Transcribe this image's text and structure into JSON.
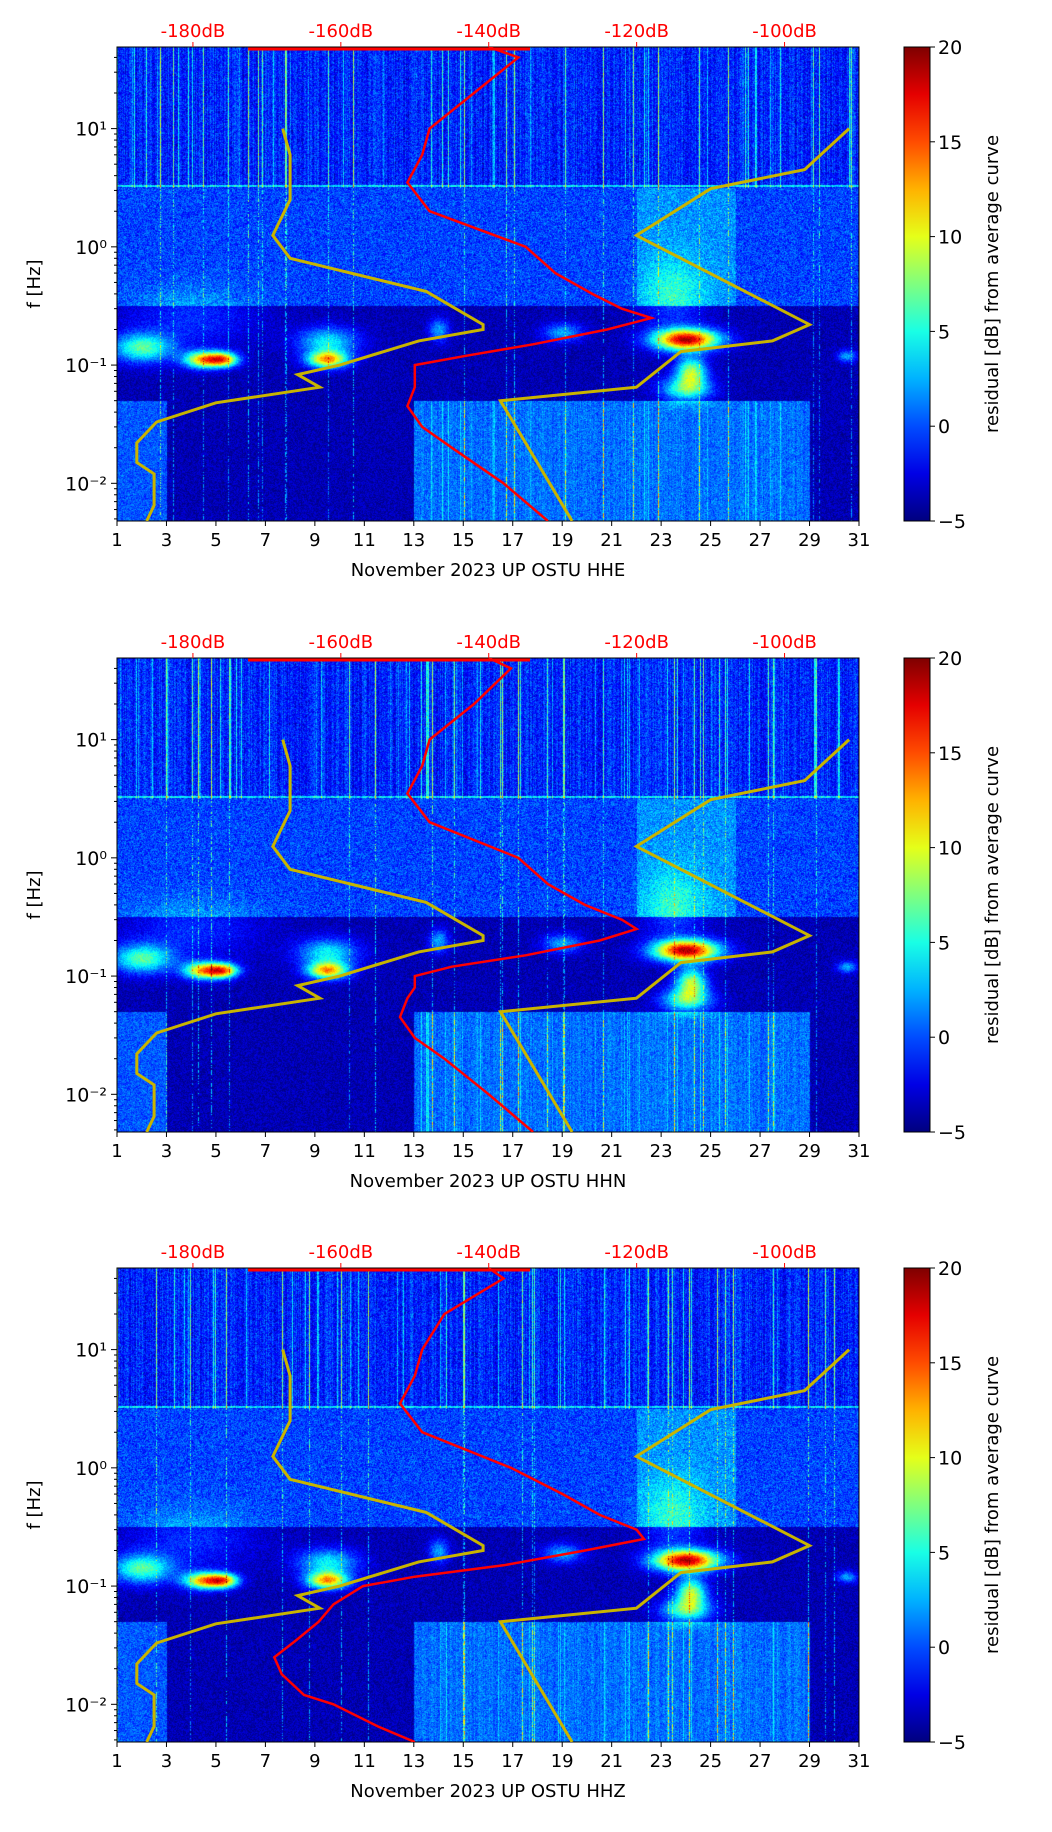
{
  "chart_data": [
    {
      "type": "heatmap",
      "title": "November 2023 UP OSTU  HHE",
      "xlabel": "November 2023 UP OSTU  HHE",
      "ylabel": "f [Hz]",
      "xlim": [
        1,
        31
      ],
      "ylim": [
        0.0048,
        49
      ],
      "yscale": "log",
      "xticks": [
        "1",
        "3",
        "5",
        "7",
        "9",
        "11",
        "13",
        "15",
        "17",
        "19",
        "21",
        "23",
        "25",
        "27",
        "29",
        "31"
      ],
      "yticks": [
        {
          "v": 10,
          "label": "10¹"
        },
        {
          "v": 1,
          "label": "10⁰"
        },
        {
          "v": 0.1,
          "label": "10⁻¹"
        },
        {
          "v": 0.01,
          "label": "10⁻²"
        }
      ],
      "top_axis": {
        "labels": [
          "-180dB",
          "-160dB",
          "-140dB",
          "-120dB",
          "-100dB"
        ],
        "values": [
          -180,
          -160,
          -140,
          -120,
          -100
        ],
        "color": "#ff0000"
      },
      "colorbar": {
        "label": "residual [dB] from average curve",
        "range": [
          -5,
          20
        ],
        "ticks": [
          "20",
          "15",
          "10",
          "5",
          "0",
          "−5"
        ]
      },
      "psd_curve_db": [
        [
          49,
          -140
        ],
        [
          40,
          -136
        ],
        [
          20,
          -142
        ],
        [
          10,
          -148
        ],
        [
          6,
          -149
        ],
        [
          3.5,
          -151
        ],
        [
          2,
          -148
        ],
        [
          1,
          -135
        ],
        [
          0.6,
          -131
        ],
        [
          0.4,
          -126
        ],
        [
          0.3,
          -122
        ],
        [
          0.25,
          -118
        ],
        [
          0.2,
          -124
        ],
        [
          0.15,
          -134
        ],
        [
          0.12,
          -143
        ],
        [
          0.1,
          -150
        ],
        [
          0.08,
          -150
        ],
        [
          0.065,
          -150
        ],
        [
          0.045,
          -151
        ],
        [
          0.03,
          -149
        ],
        [
          0.02,
          -145
        ],
        [
          0.01,
          -138
        ],
        [
          0.0048,
          -132
        ]
      ],
      "nlnm_days": [
        [
          10,
          7.7
        ],
        [
          6,
          8
        ],
        [
          2.5,
          8
        ],
        [
          1.25,
          7.3
        ],
        [
          0.8,
          8
        ],
        [
          0.42,
          13.5
        ],
        [
          0.22,
          15.8
        ],
        [
          0.2,
          15.8
        ],
        [
          0.16,
          13.2
        ],
        [
          0.1,
          10
        ],
        [
          0.083,
          8.3
        ],
        [
          0.065,
          9.2
        ],
        [
          0.048,
          5
        ],
        [
          0.033,
          2.6
        ],
        [
          0.022,
          1.8
        ],
        [
          0.015,
          1.8
        ],
        [
          0.012,
          2.5
        ],
        [
          0.0065,
          2.5
        ],
        [
          0.0048,
          2.2
        ]
      ],
      "nhnm_days": [
        [
          10,
          30.6
        ],
        [
          4.5,
          28.8
        ],
        [
          3.1,
          25
        ],
        [
          1.25,
          22
        ],
        [
          0.22,
          29
        ],
        [
          0.16,
          27.5
        ],
        [
          0.13,
          23.8
        ],
        [
          0.065,
          22
        ],
        [
          0.05,
          16.5
        ],
        [
          0.0048,
          19.4
        ]
      ]
    },
    {
      "type": "heatmap",
      "title": "November 2023 UP OSTU  HHN",
      "xlabel": "November 2023 UP OSTU  HHN",
      "ylabel": "f [Hz]",
      "xlim": [
        1,
        31
      ],
      "ylim": [
        0.0048,
        49
      ],
      "yscale": "log",
      "xticks": [
        "1",
        "3",
        "5",
        "7",
        "9",
        "11",
        "13",
        "15",
        "17",
        "19",
        "21",
        "23",
        "25",
        "27",
        "29",
        "31"
      ],
      "yticks": [
        {
          "v": 10,
          "label": "10¹"
        },
        {
          "v": 1,
          "label": "10⁰"
        },
        {
          "v": 0.1,
          "label": "10⁻¹"
        },
        {
          "v": 0.01,
          "label": "10⁻²"
        }
      ],
      "top_axis": {
        "labels": [
          "-180dB",
          "-160dB",
          "-140dB",
          "-120dB",
          "-100dB"
        ],
        "values": [
          -180,
          -160,
          -140,
          -120,
          -100
        ],
        "color": "#ff0000"
      },
      "colorbar": {
        "label": "residual [dB] from average curve",
        "range": [
          -5,
          20
        ],
        "ticks": [
          "20",
          "15",
          "10",
          "5",
          "0",
          "−5"
        ]
      },
      "psd_curve_db": [
        [
          49,
          -140
        ],
        [
          40,
          -137
        ],
        [
          20,
          -142
        ],
        [
          10,
          -148
        ],
        [
          6,
          -149
        ],
        [
          3.5,
          -151
        ],
        [
          2,
          -148
        ],
        [
          1,
          -136
        ],
        [
          0.6,
          -132
        ],
        [
          0.4,
          -127
        ],
        [
          0.3,
          -122
        ],
        [
          0.25,
          -120
        ],
        [
          0.2,
          -125
        ],
        [
          0.15,
          -135
        ],
        [
          0.12,
          -145
        ],
        [
          0.1,
          -150
        ],
        [
          0.08,
          -150
        ],
        [
          0.065,
          -151
        ],
        [
          0.045,
          -152
        ],
        [
          0.03,
          -150
        ],
        [
          0.02,
          -146
        ],
        [
          0.01,
          -140
        ],
        [
          0.0048,
          -134
        ]
      ],
      "nlnm_days": [
        [
          10,
          7.7
        ],
        [
          6,
          8
        ],
        [
          2.5,
          8
        ],
        [
          1.25,
          7.3
        ],
        [
          0.8,
          8
        ],
        [
          0.42,
          13.5
        ],
        [
          0.22,
          15.8
        ],
        [
          0.2,
          15.8
        ],
        [
          0.16,
          13.2
        ],
        [
          0.1,
          10
        ],
        [
          0.083,
          8.3
        ],
        [
          0.065,
          9.2
        ],
        [
          0.048,
          5
        ],
        [
          0.033,
          2.6
        ],
        [
          0.022,
          1.8
        ],
        [
          0.015,
          1.8
        ],
        [
          0.012,
          2.5
        ],
        [
          0.0065,
          2.5
        ],
        [
          0.0048,
          2.2
        ]
      ],
      "nhnm_days": [
        [
          10,
          30.6
        ],
        [
          4.5,
          28.8
        ],
        [
          3.1,
          25
        ],
        [
          1.25,
          22
        ],
        [
          0.22,
          29
        ],
        [
          0.16,
          27.5
        ],
        [
          0.13,
          23.8
        ],
        [
          0.065,
          22
        ],
        [
          0.05,
          16.5
        ],
        [
          0.0048,
          19.4
        ]
      ]
    },
    {
      "type": "heatmap",
      "title": "November 2023 UP OSTU  HHZ",
      "xlabel": "November 2023 UP OSTU  HHZ",
      "ylabel": "f [Hz]",
      "xlim": [
        1,
        31
      ],
      "ylim": [
        0.0048,
        49
      ],
      "yscale": "log",
      "xticks": [
        "1",
        "3",
        "5",
        "7",
        "9",
        "11",
        "13",
        "15",
        "17",
        "19",
        "21",
        "23",
        "25",
        "27",
        "29",
        "31"
      ],
      "yticks": [
        {
          "v": 10,
          "label": "10¹"
        },
        {
          "v": 1,
          "label": "10⁰"
        },
        {
          "v": 0.1,
          "label": "10⁻¹"
        },
        {
          "v": 0.01,
          "label": "10⁻²"
        }
      ],
      "top_axis": {
        "labels": [
          "-180dB",
          "-160dB",
          "-140dB",
          "-120dB",
          "-100dB"
        ],
        "values": [
          -180,
          -160,
          -140,
          -120,
          -100
        ],
        "color": "#ff0000"
      },
      "colorbar": {
        "label": "residual [dB] from average curve",
        "range": [
          -5,
          20
        ],
        "ticks": [
          "20",
          "15",
          "10",
          "5",
          "0",
          "−5"
        ]
      },
      "psd_curve_db": [
        [
          49,
          -140
        ],
        [
          40,
          -138
        ],
        [
          20,
          -146
        ],
        [
          10,
          -149
        ],
        [
          6,
          -150
        ],
        [
          3.5,
          -152
        ],
        [
          2,
          -149
        ],
        [
          1,
          -137
        ],
        [
          0.6,
          -130
        ],
        [
          0.4,
          -125
        ],
        [
          0.3,
          -120
        ],
        [
          0.25,
          -119
        ],
        [
          0.2,
          -127
        ],
        [
          0.15,
          -138
        ],
        [
          0.12,
          -150
        ],
        [
          0.1,
          -157
        ],
        [
          0.07,
          -161
        ],
        [
          0.05,
          -163
        ],
        [
          0.035,
          -166
        ],
        [
          0.025,
          -169
        ],
        [
          0.018,
          -168
        ],
        [
          0.012,
          -165
        ],
        [
          0.01,
          -161
        ],
        [
          0.0065,
          -155
        ],
        [
          0.0048,
          -150
        ]
      ],
      "nlnm_days": [
        [
          10,
          7.7
        ],
        [
          6,
          8
        ],
        [
          2.5,
          8
        ],
        [
          1.25,
          7.3
        ],
        [
          0.8,
          8
        ],
        [
          0.42,
          13.5
        ],
        [
          0.22,
          15.8
        ],
        [
          0.2,
          15.8
        ],
        [
          0.16,
          13.2
        ],
        [
          0.1,
          10
        ],
        [
          0.083,
          8.3
        ],
        [
          0.065,
          9.2
        ],
        [
          0.048,
          5
        ],
        [
          0.033,
          2.6
        ],
        [
          0.022,
          1.8
        ],
        [
          0.015,
          1.8
        ],
        [
          0.012,
          2.5
        ],
        [
          0.0065,
          2.5
        ],
        [
          0.0048,
          2.2
        ]
      ],
      "nhnm_days": [
        [
          10,
          30.6
        ],
        [
          4.5,
          28.8
        ],
        [
          3.1,
          25
        ],
        [
          1.25,
          22
        ],
        [
          0.22,
          29
        ],
        [
          0.16,
          27.5
        ],
        [
          0.13,
          23.8
        ],
        [
          0.065,
          22
        ],
        [
          0.05,
          16.5
        ],
        [
          0.0048,
          19.4
        ]
      ]
    }
  ],
  "colors": {
    "psd_curve": "#ff0000",
    "noise_model": "#c8b400"
  }
}
